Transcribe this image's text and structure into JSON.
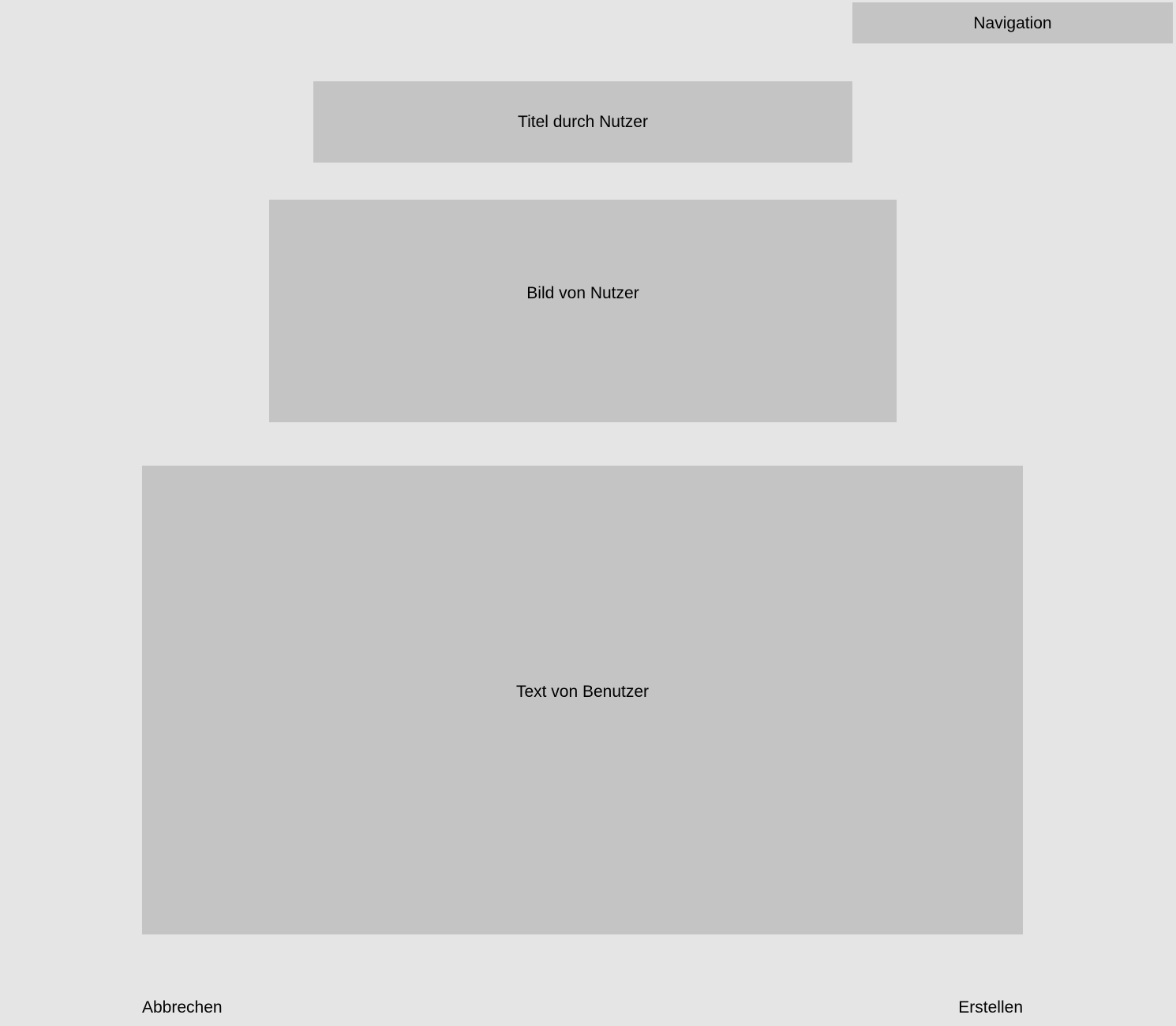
{
  "header": {
    "navigation_label": "Navigation"
  },
  "form": {
    "title_placeholder": "Titel durch Nutzer",
    "image_placeholder": "Bild von Nutzer",
    "text_placeholder": "Text von Benutzer"
  },
  "actions": {
    "cancel_label": "Abbrechen",
    "create_label": "Erstellen"
  },
  "colors": {
    "background": "#e5e5e5",
    "placeholder_fill": "#c4c4c4",
    "text": "#000000"
  }
}
